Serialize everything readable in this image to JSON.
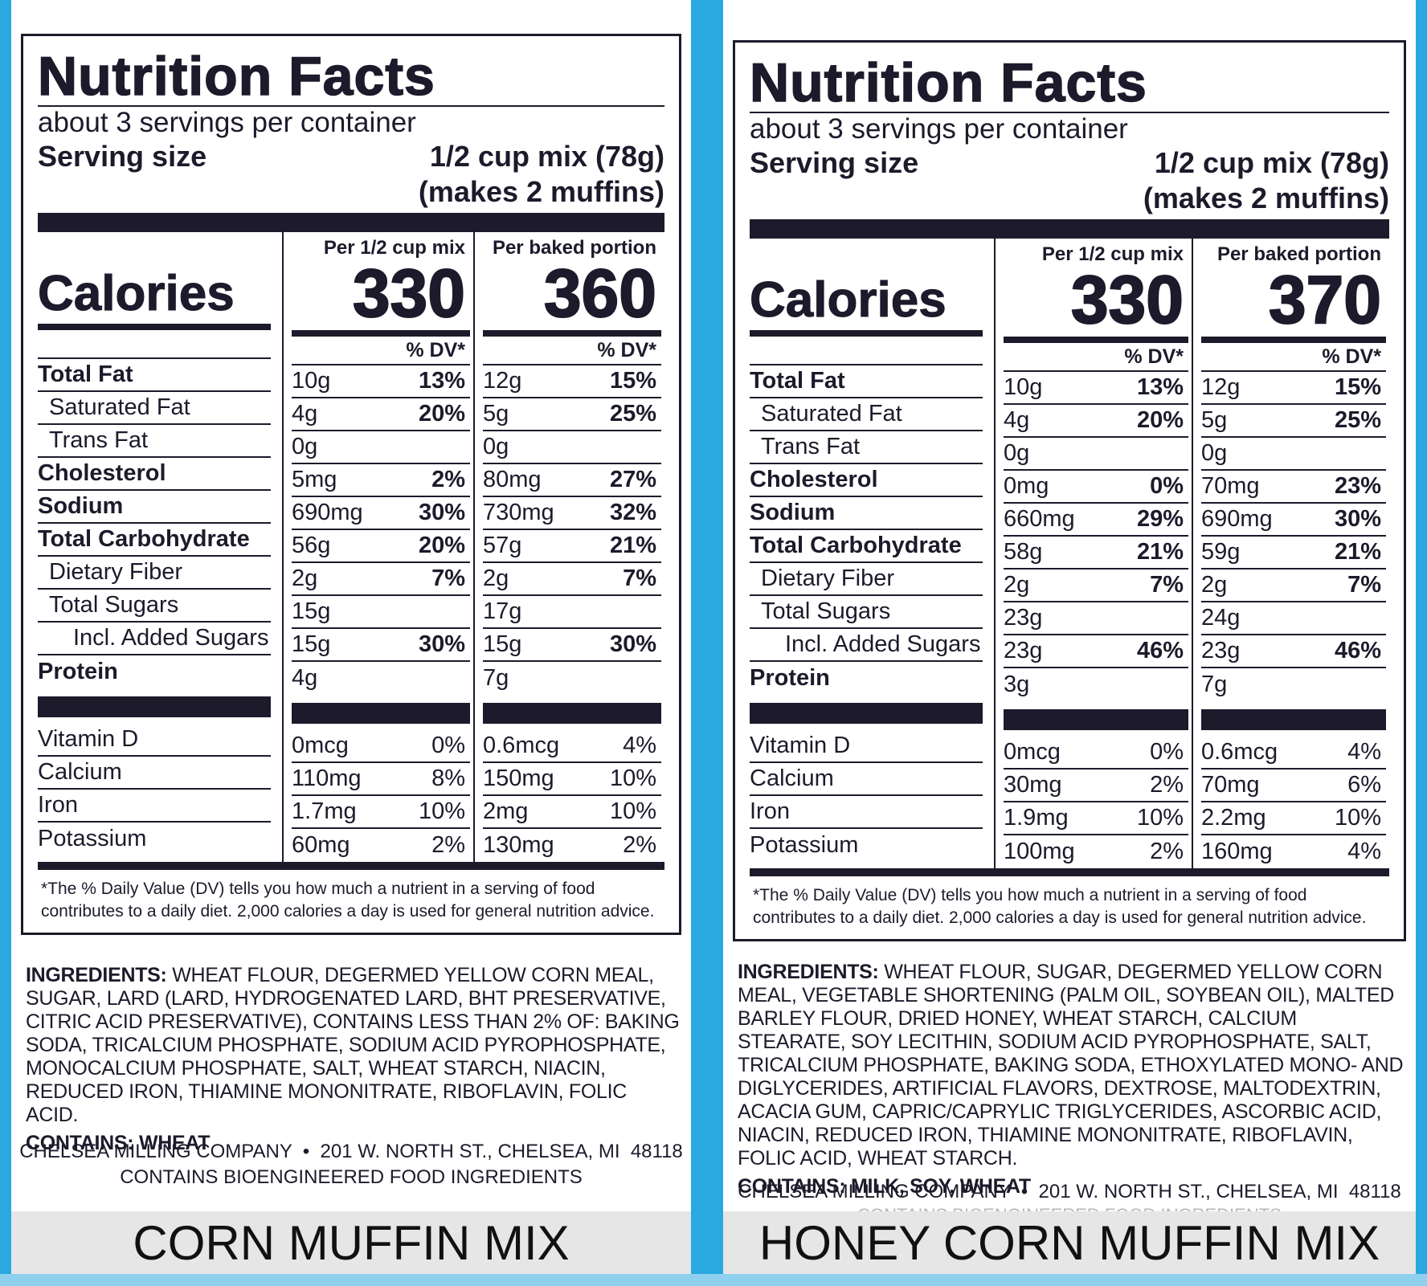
{
  "panels": [
    {
      "title": "Nutrition Facts",
      "servings": "about 3 servings per container",
      "serving_size_label": "Serving size",
      "serving_size_line1": "1/2 cup mix (78g)",
      "serving_size_line2": "(makes 2 muffins)",
      "calories_label": "Calories",
      "col_a_label": "Per 1/2 cup mix",
      "col_b_label": "Per baked portion",
      "col_a_calories": "330",
      "col_b_calories": "360",
      "dv_label": "% DV*",
      "nutrients": [
        {
          "name": "Total Fat",
          "a": "10g",
          "a_dv": "13%",
          "b": "12g",
          "b_dv": "15%"
        },
        {
          "name": "Saturated Fat",
          "a": "4g",
          "a_dv": "20%",
          "b": "5g",
          "b_dv": "25%"
        },
        {
          "name": "Trans Fat",
          "a": "0g",
          "a_dv": "",
          "b": "0g",
          "b_dv": ""
        },
        {
          "name": "Cholesterol",
          "a": "5mg",
          "a_dv": "2%",
          "b": "80mg",
          "b_dv": "27%"
        },
        {
          "name": "Sodium",
          "a": "690mg",
          "a_dv": "30%",
          "b": "730mg",
          "b_dv": "32%"
        },
        {
          "name": "Total Carbohydrate",
          "a": "56g",
          "a_dv": "20%",
          "b": "57g",
          "b_dv": "21%"
        },
        {
          "name": "Dietary Fiber",
          "a": "2g",
          "a_dv": "7%",
          "b": "2g",
          "b_dv": "7%"
        },
        {
          "name": "Total Sugars",
          "a": "15g",
          "a_dv": "",
          "b": "17g",
          "b_dv": ""
        },
        {
          "name": "Incl. Added Sugars",
          "a": "15g",
          "a_dv": "30%",
          "b": "15g",
          "b_dv": "30%"
        },
        {
          "name": "Protein",
          "a": "4g",
          "a_dv": "",
          "b": "7g",
          "b_dv": ""
        }
      ],
      "vitamins": [
        {
          "name": "Vitamin D",
          "a": "0mcg",
          "a_dv": "0%",
          "b": "0.6mcg",
          "b_dv": "4%"
        },
        {
          "name": "Calcium",
          "a": "110mg",
          "a_dv": "8%",
          "b": "150mg",
          "b_dv": "10%"
        },
        {
          "name": "Iron",
          "a": "1.7mg",
          "a_dv": "10%",
          "b": "2mg",
          "b_dv": "10%"
        },
        {
          "name": "Potassium",
          "a": "60mg",
          "a_dv": "2%",
          "b": "130mg",
          "b_dv": "2%"
        }
      ],
      "footnote": "*The % Daily Value (DV) tells you how much a nutrient in a serving of food contributes to a daily diet. 2,000 calories a day is used for general nutrition advice.",
      "ingredients_label": "INGREDIENTS:",
      "ingredients": "WHEAT FLOUR, DEGERMED YELLOW CORN MEAL, SUGAR, LARD (LARD, HYDROGENATED LARD, BHT PRESERVATIVE, CITRIC ACID PRESERVATIVE), CONTAINS LESS THAN 2% OF: BAKING SODA, TRICALCIUM PHOSPHATE, SODIUM ACID PYROPHOSPHATE, MONOCALCIUM PHOSPHATE, SALT, WHEAT STARCH, NIACIN, REDUCED IRON, THIAMINE MONONITRATE, RIBOFLAVIN, FOLIC ACID.",
      "contains": "CONTAINS: WHEAT",
      "company": "CHELSEA MILLING COMPANY  •  201 W. NORTH ST., CHELSEA, MI  48118",
      "bioengineered": "CONTAINS BIOENGINEERED FOOD INGREDIENTS",
      "caption": "CORN MUFFIN MIX"
    },
    {
      "title": "Nutrition Facts",
      "servings": "about 3 servings per container",
      "serving_size_label": "Serving size",
      "serving_size_line1": "1/2 cup mix (78g)",
      "serving_size_line2": "(makes 2 muffins)",
      "calories_label": "Calories",
      "col_a_label": "Per 1/2 cup mix",
      "col_b_label": "Per baked portion",
      "col_a_calories": "330",
      "col_b_calories": "370",
      "dv_label": "% DV*",
      "nutrients": [
        {
          "name": "Total Fat",
          "a": "10g",
          "a_dv": "13%",
          "b": "12g",
          "b_dv": "15%"
        },
        {
          "name": "Saturated Fat",
          "a": "4g",
          "a_dv": "20%",
          "b": "5g",
          "b_dv": "25%"
        },
        {
          "name": "Trans Fat",
          "a": "0g",
          "a_dv": "",
          "b": "0g",
          "b_dv": ""
        },
        {
          "name": "Cholesterol",
          "a": "0mg",
          "a_dv": "0%",
          "b": "70mg",
          "b_dv": "23%"
        },
        {
          "name": "Sodium",
          "a": "660mg",
          "a_dv": "29%",
          "b": "690mg",
          "b_dv": "30%"
        },
        {
          "name": "Total Carbohydrate",
          "a": "58g",
          "a_dv": "21%",
          "b": "59g",
          "b_dv": "21%"
        },
        {
          "name": "Dietary Fiber",
          "a": "2g",
          "a_dv": "7%",
          "b": "2g",
          "b_dv": "7%"
        },
        {
          "name": "Total Sugars",
          "a": "23g",
          "a_dv": "",
          "b": "24g",
          "b_dv": ""
        },
        {
          "name": "Incl. Added Sugars",
          "a": "23g",
          "a_dv": "46%",
          "b": "23g",
          "b_dv": "46%"
        },
        {
          "name": "Protein",
          "a": "3g",
          "a_dv": "",
          "b": "7g",
          "b_dv": ""
        }
      ],
      "vitamins": [
        {
          "name": "Vitamin D",
          "a": "0mcg",
          "a_dv": "0%",
          "b": "0.6mcg",
          "b_dv": "4%"
        },
        {
          "name": "Calcium",
          "a": "30mg",
          "a_dv": "2%",
          "b": "70mg",
          "b_dv": "6%"
        },
        {
          "name": "Iron",
          "a": "1.9mg",
          "a_dv": "10%",
          "b": "2.2mg",
          "b_dv": "10%"
        },
        {
          "name": "Potassium",
          "a": "100mg",
          "a_dv": "2%",
          "b": "160mg",
          "b_dv": "4%"
        }
      ],
      "footnote": "*The % Daily Value (DV) tells you how much a nutrient in a serving of food contributes to a daily diet. 2,000 calories a day is used for general nutrition advice.",
      "ingredients_label": "INGREDIENTS:",
      "ingredients": "WHEAT FLOUR, SUGAR, DEGERMED YELLOW CORN MEAL, VEGETABLE SHORTENING (PALM OIL, SOYBEAN OIL), MALTED BARLEY FLOUR, DRIED HONEY, WHEAT STARCH, CALCIUM STEARATE, SOY LECITHIN, SODIUM ACID PYROPHOSPHATE, SALT, TRICALCIUM PHOSPHATE, BAKING SODA, ETHOXYLATED MONO- AND DIGLYCERIDES, ARTIFICIAL FLAVORS, DEXTROSE, MALTODEXTRIN, ACACIA GUM, CAPRIC/CAPRYLIC TRIGLYCERIDES, ASCORBIC ACID, NIACIN, REDUCED IRON, THIAMINE MONONITRATE, RIBOFLAVIN, FOLIC ACID, WHEAT STARCH.",
      "contains": "CONTAINS: MILK, SOY, WHEAT",
      "company": "CHELSEA MILLING COMPANY  •  201 W. NORTH ST., CHELSEA, MI  48118",
      "bioengineered": "CONTAINS BIOENGINEERED FOOD INGREDIENTS",
      "caption": "HONEY CORN MUFFIN MIX"
    }
  ]
}
